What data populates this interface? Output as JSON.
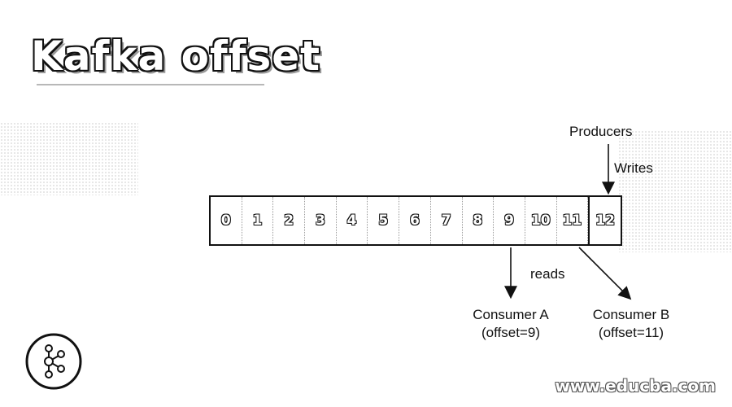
{
  "title": "Kafka offset",
  "offsets": [
    "0",
    "1",
    "2",
    "3",
    "4",
    "5",
    "6",
    "7",
    "8",
    "9",
    "10",
    "11",
    "12"
  ],
  "labels": {
    "producers": "Producers",
    "writes": "Writes",
    "reads": "reads",
    "consumer_a": "Consumer A",
    "consumer_a_offset": "(offset=9)",
    "consumer_b": "Consumer B",
    "consumer_b_offset": "(offset=11)"
  },
  "watermark": "www.educba.com",
  "icons": {
    "logo": "kafka-logo-icon"
  },
  "colors": {
    "stroke": "#111111",
    "background": "#ffffff"
  }
}
